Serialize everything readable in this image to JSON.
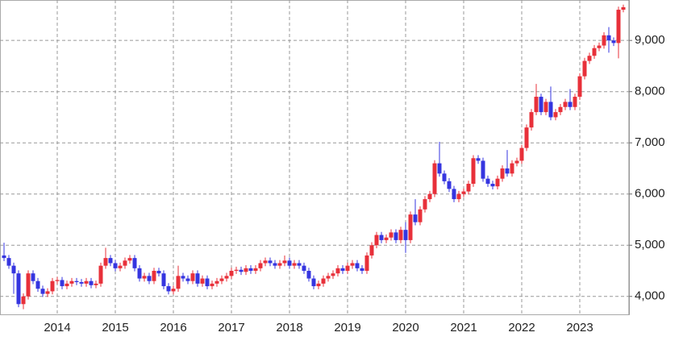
{
  "chart_data": {
    "type": "candlestick",
    "up_color": "#e8303a",
    "down_color": "#3535e0",
    "ylim": [
      3650,
      9790
    ],
    "yticks": [
      {
        "value": 4000,
        "label": "4,000"
      },
      {
        "value": 5000,
        "label": "5,000"
      },
      {
        "value": 6000,
        "label": "6,000"
      },
      {
        "value": 7000,
        "label": "7,000"
      },
      {
        "value": 8000,
        "label": "8,000"
      },
      {
        "value": 9000,
        "label": "9,000"
      }
    ],
    "grid": true,
    "categories": [
      null,
      null,
      null,
      null,
      null,
      null,
      null,
      null,
      null,
      null,
      null,
      "2014",
      null,
      null,
      null,
      null,
      null,
      null,
      null,
      null,
      null,
      null,
      null,
      "2015",
      null,
      null,
      null,
      null,
      null,
      null,
      null,
      null,
      null,
      null,
      null,
      "2016",
      null,
      null,
      null,
      null,
      null,
      null,
      null,
      null,
      null,
      null,
      null,
      "2017",
      null,
      null,
      null,
      null,
      null,
      null,
      null,
      null,
      null,
      null,
      null,
      "2018",
      null,
      null,
      null,
      null,
      null,
      null,
      null,
      null,
      null,
      null,
      null,
      "2019",
      null,
      null,
      null,
      null,
      null,
      null,
      null,
      null,
      null,
      null,
      null,
      "2020",
      null,
      null,
      null,
      null,
      null,
      null,
      null,
      null,
      null,
      null,
      null,
      "2021",
      null,
      null,
      null,
      null,
      null,
      null,
      null,
      null,
      null,
      null,
      null,
      "2022",
      null,
      null,
      null,
      null,
      null,
      null,
      null,
      null,
      null,
      null,
      null,
      "2023",
      null,
      null,
      null,
      null,
      null,
      null,
      null,
      null,
      null
    ],
    "open": [
      4800,
      4750,
      4600,
      4450,
      3850,
      4000,
      4450,
      4300,
      4150,
      4050,
      4100,
      4300,
      4320,
      4200,
      4250,
      4300,
      4280,
      4250,
      4300,
      4220,
      4250,
      4600,
      4750,
      4650,
      4550,
      4600,
      4700,
      4750,
      4550,
      4350,
      4400,
      4300,
      4500,
      4450,
      4200,
      4100,
      4150,
      4400,
      4350,
      4300,
      4450,
      4250,
      4350,
      4200,
      4250,
      4300,
      4350,
      4400,
      4500,
      4520,
      4480,
      4550,
      4500,
      4550,
      4650,
      4700,
      4650,
      4600,
      4650,
      4700,
      4600,
      4650,
      4600,
      4500,
      4350,
      4200,
      4250,
      4350,
      4400,
      4450,
      4550,
      4500,
      4600,
      4650,
      4550,
      4500,
      4800,
      5000,
      5200,
      5100,
      5150,
      5250,
      5100,
      5300,
      5100,
      5600,
      5450,
      5700,
      5900,
      6000,
      6600,
      6400,
      6250,
      6100,
      5900,
      6000,
      6050,
      6200,
      6700,
      6650,
      6300,
      6200,
      6150,
      6300,
      6500,
      6400,
      6600,
      6650,
      6900,
      7300,
      7600,
      7900,
      7600,
      7800,
      7500,
      7600,
      7700,
      7800,
      7700,
      7900,
      8300,
      8600,
      8700,
      8850,
      8900,
      9100,
      9000,
      8950,
      9600
    ],
    "high": [
      5050,
      4810,
      4660,
      4510,
      4060,
      4510,
      4510,
      4360,
      4210,
      4160,
      4360,
      4380,
      4380,
      4310,
      4360,
      4360,
      4340,
      4360,
      4360,
      4310,
      4660,
      4950,
      4810,
      4710,
      4660,
      4760,
      4810,
      4810,
      4610,
      4460,
      4460,
      4560,
      4560,
      4510,
      4260,
      4210,
      4600,
      4460,
      4410,
      4510,
      4510,
      4410,
      4410,
      4310,
      4360,
      4410,
      4460,
      4560,
      4580,
      4580,
      4610,
      4610,
      4610,
      4710,
      4760,
      4760,
      4710,
      4710,
      4800,
      4760,
      4710,
      4710,
      4660,
      4560,
      4410,
      4310,
      4410,
      4460,
      4510,
      4610,
      4610,
      4660,
      4710,
      4710,
      4610,
      4860,
      5060,
      5260,
      5260,
      5210,
      5310,
      5310,
      5360,
      5450,
      5660,
      5900,
      5760,
      5960,
      6060,
      6660,
      7020,
      6460,
      6310,
      6160,
      6060,
      6110,
      6260,
      6760,
      6760,
      6710,
      6360,
      6260,
      6360,
      6560,
      6860,
      6660,
      6710,
      6960,
      7360,
      7660,
      8150,
      7960,
      7860,
      8100,
      7660,
      7760,
      7860,
      8050,
      7960,
      8360,
      8660,
      8760,
      8910,
      8960,
      9160,
      9260,
      9060,
      9660,
      9700
    ],
    "low": [
      4690,
      4540,
      4050,
      3790,
      3750,
      3940,
      4240,
      4090,
      3990,
      3990,
      4040,
      4240,
      4140,
      4140,
      4190,
      4220,
      4190,
      4190,
      4160,
      4160,
      4190,
      4540,
      4590,
      4490,
      4490,
      4540,
      4640,
      4490,
      4290,
      4290,
      4240,
      4240,
      4390,
      4140,
      4040,
      4040,
      4090,
      4290,
      4240,
      4240,
      4190,
      4190,
      4140,
      4140,
      4190,
      4240,
      4290,
      4340,
      4440,
      4420,
      4420,
      4440,
      4440,
      4490,
      4590,
      4590,
      4540,
      4540,
      4590,
      4540,
      4540,
      4540,
      4440,
      4290,
      4140,
      4140,
      4190,
      4290,
      4340,
      4390,
      4440,
      4440,
      4540,
      4490,
      4440,
      4440,
      4740,
      4940,
      5040,
      5040,
      5090,
      5040,
      5040,
      4850,
      5040,
      5390,
      5390,
      5640,
      5840,
      5940,
      6340,
      6190,
      6040,
      5840,
      5840,
      5940,
      5990,
      6140,
      6590,
      6240,
      6140,
      6090,
      6090,
      6240,
      6340,
      6340,
      6540,
      6590,
      6840,
      7240,
      7540,
      7540,
      7540,
      7440,
      7440,
      7540,
      7640,
      7640,
      7640,
      7840,
      8240,
      8540,
      8640,
      8790,
      8840,
      8760,
      8890,
      8650,
      9550
    ],
    "close": [
      4750,
      4600,
      4450,
      3850,
      4000,
      4450,
      4300,
      4150,
      4050,
      4100,
      4300,
      4320,
      4200,
      4250,
      4300,
      4280,
      4250,
      4300,
      4220,
      4250,
      4600,
      4750,
      4650,
      4550,
      4600,
      4700,
      4750,
      4550,
      4350,
      4400,
      4300,
      4500,
      4450,
      4200,
      4100,
      4150,
      4400,
      4350,
      4300,
      4450,
      4250,
      4350,
      4200,
      4250,
      4300,
      4350,
      4400,
      4500,
      4520,
      4480,
      4550,
      4500,
      4550,
      4650,
      4700,
      4650,
      4600,
      4650,
      4700,
      4600,
      4650,
      4600,
      4500,
      4350,
      4200,
      4250,
      4350,
      4400,
      4450,
      4550,
      4500,
      4600,
      4650,
      4550,
      4500,
      4800,
      5000,
      5200,
      5100,
      5150,
      5250,
      5100,
      5300,
      5100,
      5600,
      5450,
      5700,
      5900,
      6000,
      6600,
      6400,
      6250,
      6100,
      5900,
      6000,
      6050,
      6200,
      6700,
      6650,
      6300,
      6200,
      6150,
      6300,
      6500,
      6400,
      6600,
      6650,
      6900,
      7300,
      7600,
      7900,
      7600,
      7800,
      7500,
      7600,
      7700,
      7800,
      7700,
      7900,
      8300,
      8600,
      8700,
      8850,
      8900,
      9100,
      9000,
      8950,
      9600,
      9650
    ]
  }
}
